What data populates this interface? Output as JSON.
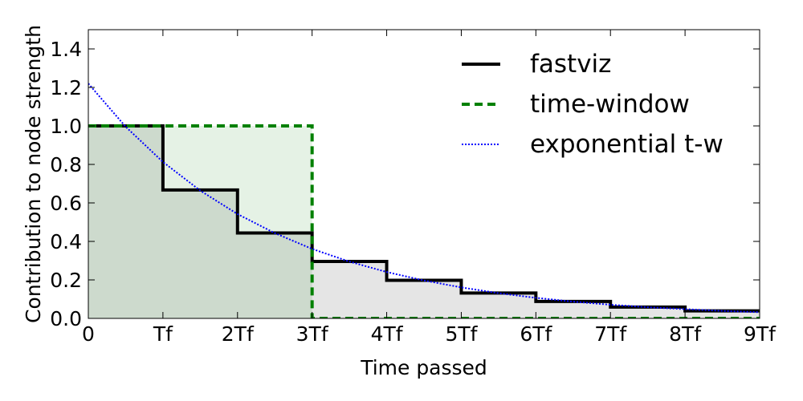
{
  "chart_data": {
    "type": "line",
    "xlabel": "Time passed",
    "ylabel": "Contribution to node strength",
    "xlim": [
      0,
      9
    ],
    "ylim": [
      0,
      1.5
    ],
    "xticks": [
      0,
      {
        "value": 1,
        "label": "Tf"
      },
      {
        "value": 2,
        "label": "2Tf"
      },
      {
        "value": 3,
        "label": "3Tf"
      },
      {
        "value": 4,
        "label": "4Tf"
      },
      {
        "value": 5,
        "label": "5Tf"
      },
      {
        "value": 6,
        "label": "6Tf"
      },
      {
        "value": 7,
        "label": "7Tf"
      },
      {
        "value": 8,
        "label": "8Tf"
      },
      {
        "value": 9,
        "label": "9Tf"
      }
    ],
    "yticks": [
      {
        "value": 0,
        "label": "0.0"
      },
      0.2,
      0.4,
      0.6,
      0.8,
      {
        "value": 1,
        "label": "1.0"
      },
      1.2,
      1.4
    ],
    "legend": "upper right",
    "series": [
      {
        "name": "fastviz",
        "color": "#000000",
        "style": "solid",
        "step": true,
        "fill": true,
        "x": [
          0,
          1,
          2,
          3,
          4,
          5,
          6,
          7,
          8
        ],
        "values": [
          1,
          0.667,
          0.444,
          0.296,
          0.198,
          0.132,
          0.088,
          0.059,
          0.039
        ]
      },
      {
        "name": "time-window",
        "color": "#008000",
        "style": "dashed",
        "step": true,
        "fill": true,
        "x": [
          0,
          1,
          2,
          3,
          4,
          5,
          6,
          7,
          8
        ],
        "values": [
          1,
          1,
          1,
          0,
          0,
          0,
          0,
          0,
          0
        ]
      },
      {
        "name": "exponential t-w",
        "color": "#0000ff",
        "style": "dotted",
        "step": false,
        "fill": false,
        "x": [
          0,
          0.5,
          1,
          1.5,
          2,
          2.5,
          3,
          3.5,
          4,
          4.5,
          5,
          5.5,
          6,
          6.5,
          7,
          7.5,
          8,
          8.5,
          9
        ],
        "values": [
          1.22,
          0.996,
          0.813,
          0.664,
          0.542,
          0.443,
          0.361,
          0.295,
          0.241,
          0.197,
          0.161,
          0.131,
          0.107,
          0.087,
          0.071,
          0.058,
          0.048,
          0.039,
          0.032
        ]
      }
    ]
  }
}
